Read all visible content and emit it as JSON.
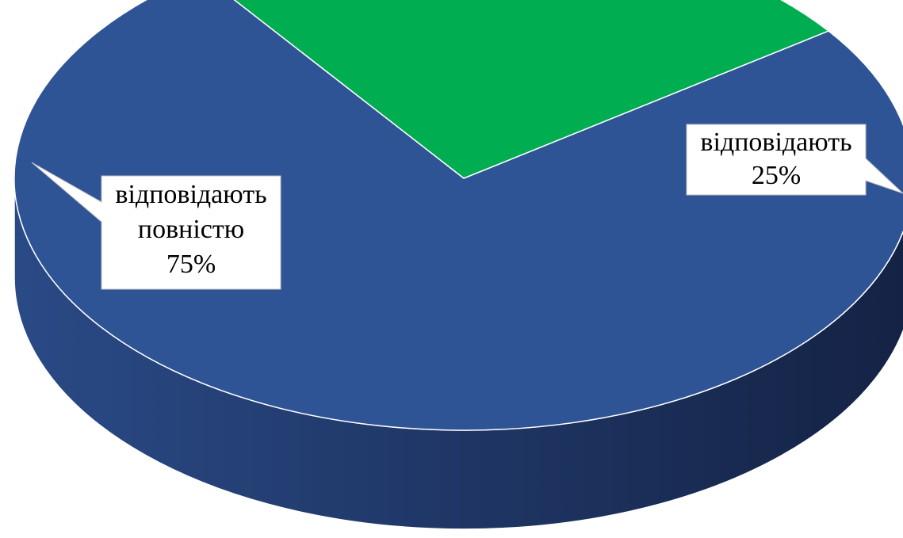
{
  "chart_data": {
    "type": "pie",
    "three_d": true,
    "slices": [
      {
        "label_lines": [
          "відповідають",
          "повністю",
          "75%"
        ],
        "value": 75,
        "color": "#2f5496",
        "side_color_light": "#2a4a86",
        "side_color_dark": "#142244"
      },
      {
        "label_lines": [
          "відповідають",
          "25%"
        ],
        "value": 25,
        "color": "#00ad50",
        "side_color_light": "#005e2a",
        "side_color_dark": "#00401c"
      }
    ],
    "legend": "none",
    "data_labels": "callouts"
  }
}
